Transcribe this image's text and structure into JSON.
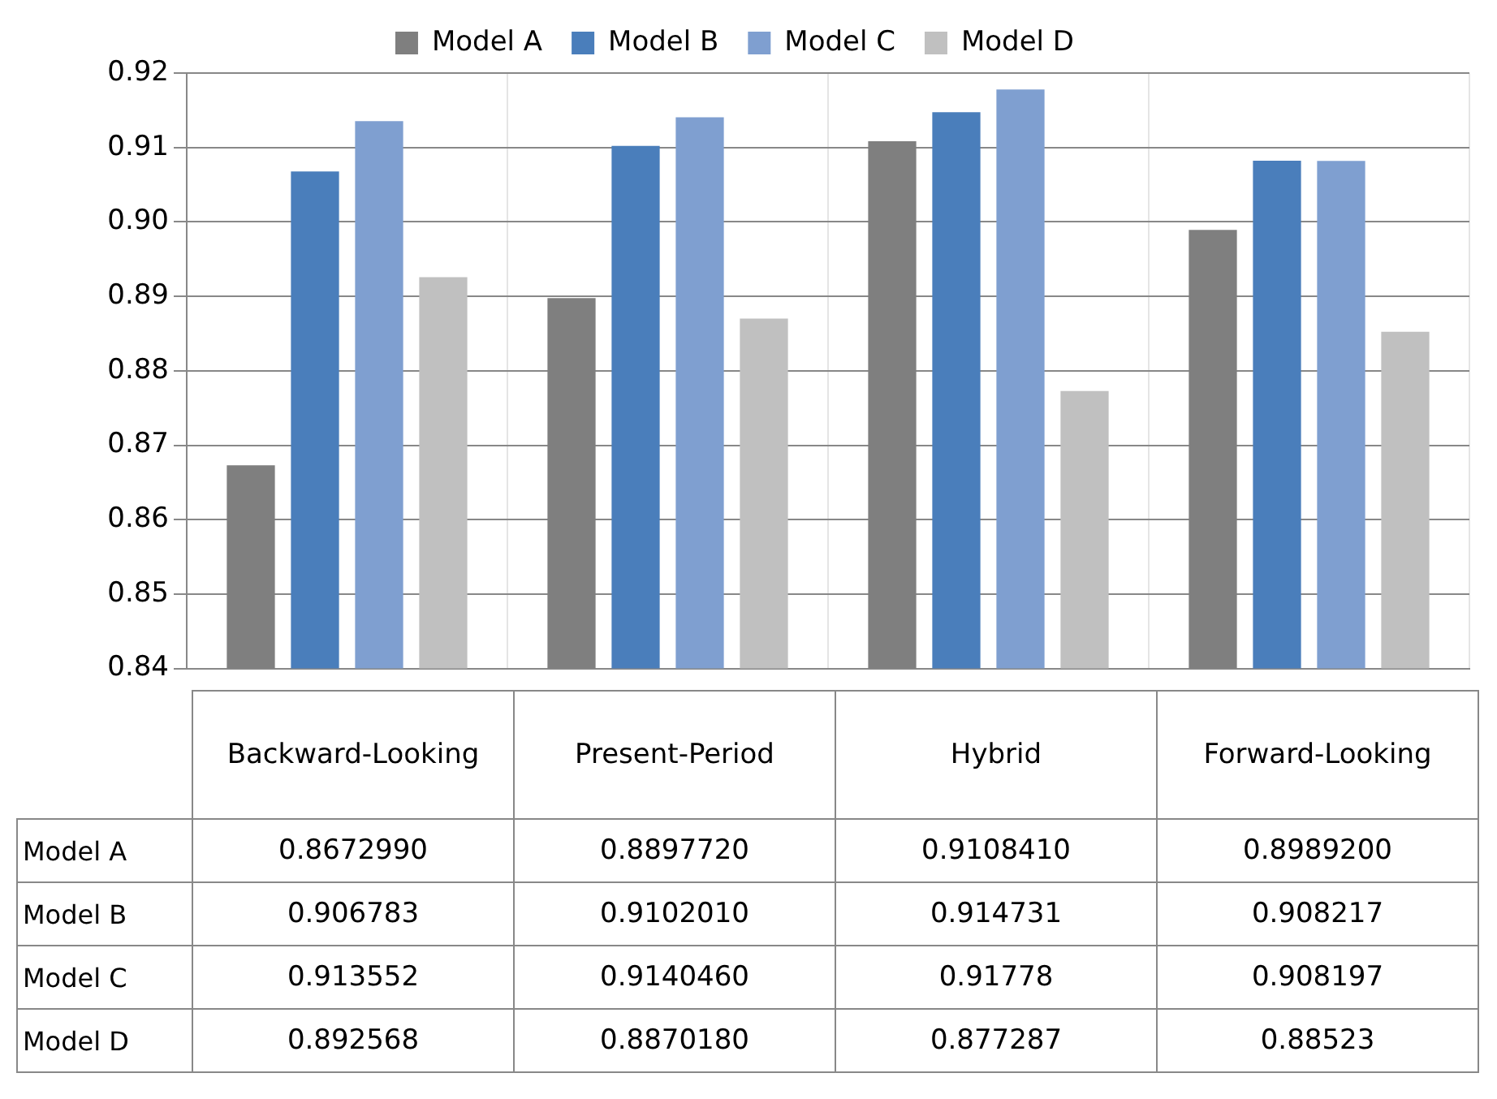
{
  "chart_data": {
    "type": "bar",
    "categories": [
      "Backward-Looking",
      "Present-Period",
      "Hybrid",
      "Forward-Looking"
    ],
    "series": [
      {
        "name": "Model A",
        "color": "#7f7f7f",
        "values": [
          0.867299,
          0.889772,
          0.910841,
          0.89892
        ],
        "value_labels": [
          "0.8672990",
          "0.8897720",
          "0.9108410",
          "0.8989200"
        ]
      },
      {
        "name": "Model B",
        "color": "#4a7ebb",
        "values": [
          0.906783,
          0.910201,
          0.914731,
          0.908217
        ],
        "value_labels": [
          "0.906783",
          "0.9102010",
          "0.914731",
          "0.908217"
        ]
      },
      {
        "name": "Model C",
        "color": "#7f9fd0",
        "values": [
          0.913552,
          0.914046,
          0.91778,
          0.908197
        ],
        "value_labels": [
          "0.913552",
          "0.9140460",
          "0.91778",
          "0.908197"
        ]
      },
      {
        "name": "Model D",
        "color": "#c0c0c0",
        "values": [
          0.892568,
          0.887018,
          0.877287,
          0.88523
        ],
        "value_labels": [
          "0.892568",
          "0.8870180",
          "0.877287",
          "0.88523"
        ]
      }
    ],
    "ylim": [
      0.84,
      0.92
    ],
    "yticks": [
      {
        "value": 0.84,
        "label": "0.84"
      },
      {
        "value": 0.85,
        "label": "0.85"
      },
      {
        "value": 0.86,
        "label": "0.86"
      },
      {
        "value": 0.87,
        "label": "0.87"
      },
      {
        "value": 0.88,
        "label": "0.88"
      },
      {
        "value": 0.89,
        "label": "0.89"
      },
      {
        "value": 0.9,
        "label": "0.90"
      },
      {
        "value": 0.91,
        "label": "0.91"
      },
      {
        "value": 0.92,
        "label": "0.92"
      }
    ],
    "grid": true,
    "legend": "top"
  }
}
